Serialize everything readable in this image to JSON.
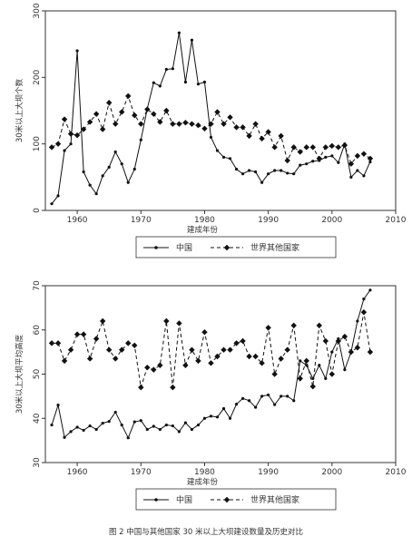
{
  "caption": "图 2  中国与其他国家 30 米以上大坝建设数量及历史对比",
  "chart_data": [
    {
      "type": "line",
      "xlabel": "建成年份",
      "ylabel": "30米以上大坝个数",
      "xlim": [
        1955,
        2010
      ],
      "ylim": [
        0,
        300
      ],
      "xticks": [
        1960,
        1970,
        1980,
        1990,
        2000,
        2010
      ],
      "yticks": [
        0,
        100,
        200,
        300
      ],
      "x": [
        1956,
        1957,
        1958,
        1959,
        1960,
        1961,
        1962,
        1963,
        1964,
        1965,
        1966,
        1967,
        1968,
        1969,
        1970,
        1971,
        1972,
        1973,
        1974,
        1975,
        1976,
        1977,
        1978,
        1979,
        1980,
        1981,
        1982,
        1983,
        1984,
        1985,
        1986,
        1987,
        1988,
        1989,
        1990,
        1991,
        1992,
        1993,
        1994,
        1995,
        1996,
        1997,
        1998,
        1999,
        2000,
        2001,
        2002,
        2003,
        2004,
        2005,
        2006
      ],
      "series": [
        {
          "name": "中国",
          "style": "solid",
          "values": [
            10,
            22,
            90,
            100,
            240,
            58,
            38,
            25,
            52,
            65,
            88,
            70,
            42,
            62,
            106,
            153,
            192,
            187,
            212,
            213,
            267,
            193,
            256,
            190,
            193,
            110,
            90,
            80,
            78,
            62,
            55,
            60,
            58,
            42,
            55,
            60,
            60,
            56,
            55,
            68,
            70,
            74,
            75,
            80,
            82,
            72,
            100,
            50,
            60,
            52,
            73
          ]
        },
        {
          "name": "世界其他国家",
          "style": "dashed",
          "values": [
            95,
            100,
            137,
            115,
            113,
            122,
            133,
            145,
            122,
            162,
            130,
            148,
            172,
            143,
            130,
            152,
            145,
            133,
            150,
            130,
            130,
            132,
            130,
            128,
            123,
            130,
            148,
            130,
            140,
            125,
            125,
            112,
            130,
            108,
            118,
            95,
            112,
            75,
            95,
            88,
            95,
            95,
            78,
            95,
            97,
            95,
            98,
            70,
            82,
            85,
            78
          ]
        }
      ],
      "legend": "bottom"
    },
    {
      "type": "line",
      "xlabel": "建成年份",
      "ylabel": "30米以上大坝平均高度",
      "xlim": [
        1955,
        2010
      ],
      "ylim": [
        30,
        70
      ],
      "xticks": [
        1960,
        1970,
        1980,
        1990,
        2000,
        2010
      ],
      "yticks": [
        30,
        40,
        50,
        60,
        70
      ],
      "x": [
        1956,
        1957,
        1958,
        1959,
        1960,
        1961,
        1962,
        1963,
        1964,
        1965,
        1966,
        1967,
        1968,
        1969,
        1970,
        1971,
        1972,
        1973,
        1974,
        1975,
        1976,
        1977,
        1978,
        1979,
        1980,
        1981,
        1982,
        1983,
        1984,
        1985,
        1986,
        1987,
        1988,
        1989,
        1990,
        1991,
        1992,
        1993,
        1994,
        1995,
        1996,
        1997,
        1998,
        1999,
        2000,
        2001,
        2002,
        2003,
        2004,
        2005,
        2006
      ],
      "series": [
        {
          "name": "中国",
          "style": "solid",
          "values": [
            38.5,
            43,
            35.7,
            37,
            38,
            37.3,
            38.3,
            37.5,
            38.9,
            39.3,
            41.4,
            38.5,
            35.6,
            39.2,
            39.5,
            37.5,
            38.2,
            37.5,
            38.5,
            38.3,
            37,
            39,
            37.5,
            38.5,
            40,
            40.5,
            40.3,
            42.2,
            40,
            43.2,
            44.5,
            44,
            42.5,
            45,
            45.3,
            43.1,
            45,
            45,
            44,
            53,
            52,
            49,
            52,
            49,
            55,
            58,
            51,
            55,
            62,
            67,
            69
          ]
        },
        {
          "name": "世界其他国家",
          "style": "dashed",
          "values": [
            57,
            57,
            53,
            55.5,
            59,
            59,
            53.5,
            58,
            62,
            55.5,
            53.5,
            55.5,
            57,
            56.5,
            47,
            51.5,
            51,
            52,
            62,
            47,
            61.5,
            52,
            55.5,
            53,
            59.5,
            52.5,
            54,
            55.5,
            55.5,
            57,
            57.5,
            54,
            54,
            52.5,
            60.5,
            50,
            53.5,
            55.5,
            61,
            49,
            53,
            47.2,
            61,
            57.5,
            50,
            57.5,
            58.5,
            55,
            56,
            64,
            55
          ]
        }
      ],
      "legend": "bottom"
    }
  ]
}
